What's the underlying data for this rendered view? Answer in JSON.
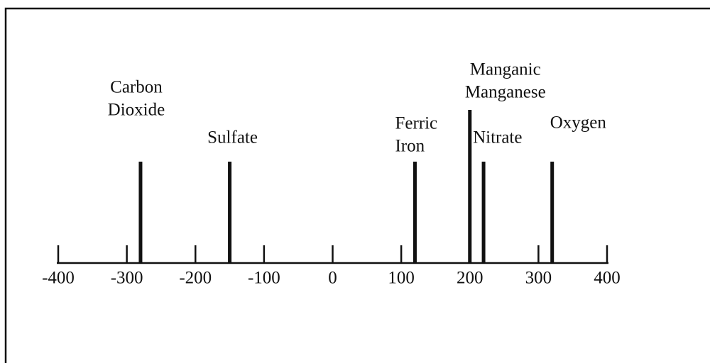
{
  "chart_data": {
    "type": "stem",
    "categories": [
      [
        "Carbon",
        "Dioxide"
      ],
      [
        "Sulfate"
      ],
      [
        "Ferric",
        "Iron"
      ],
      [
        "Manganic",
        "Manganese"
      ],
      [
        "Nitrate"
      ],
      [
        "Oxygen"
      ]
    ],
    "x": [
      -280,
      -150,
      120,
      200,
      220,
      320
    ],
    "color": "#111111",
    "xlim": [
      -400,
      400
    ],
    "xticks": [
      -400,
      -300,
      -200,
      -100,
      0,
      100,
      200,
      300,
      400
    ]
  }
}
